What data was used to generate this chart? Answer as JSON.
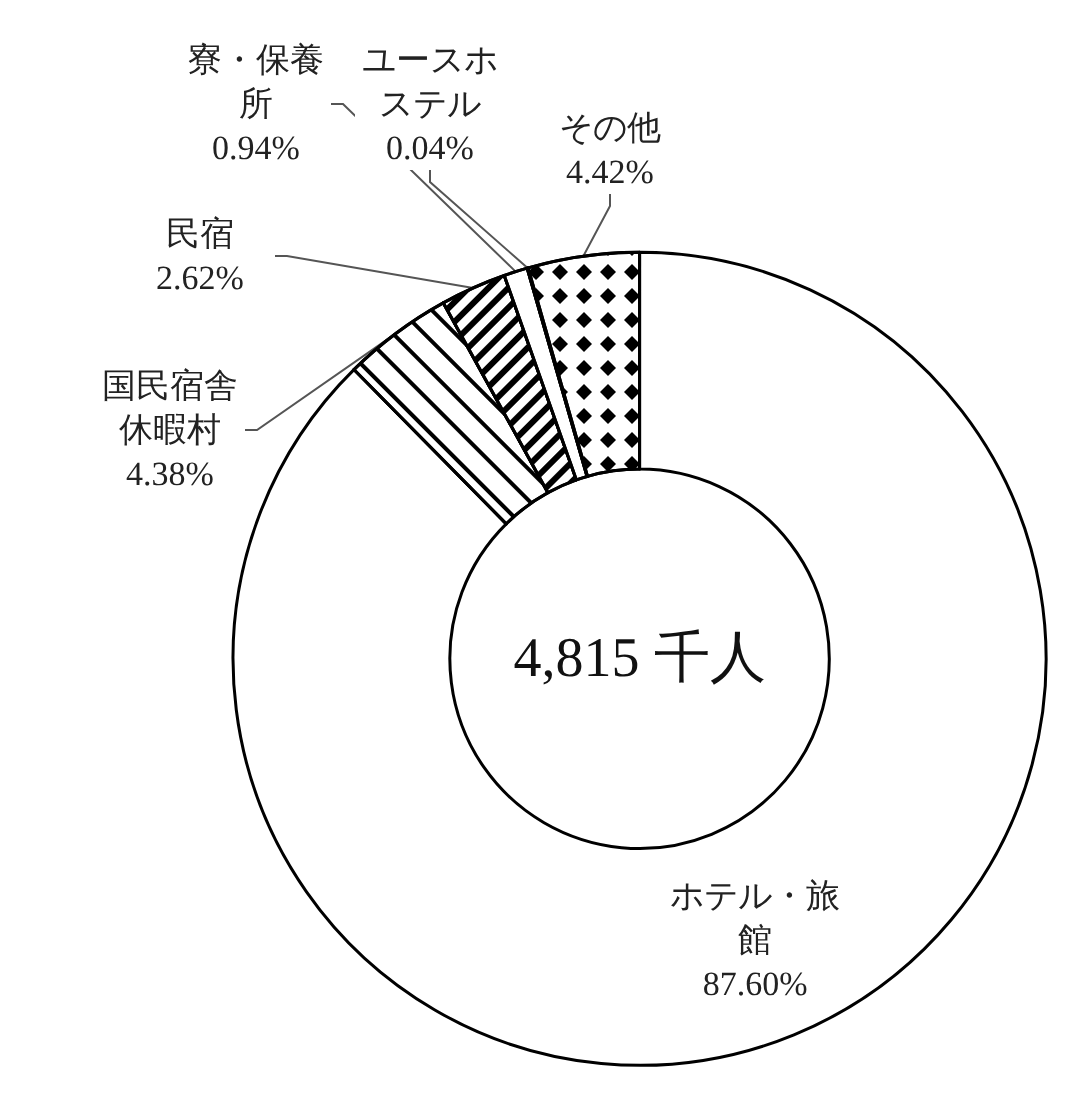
{
  "chart_data": {
    "type": "donut",
    "categories": [
      "ホテル・旅館",
      "国民宿舎休暇村",
      "民宿",
      "寮・保養所",
      "ユースホステル",
      "その他"
    ],
    "values": [
      87.6,
      4.38,
      2.62,
      0.94,
      0.04,
      4.42
    ],
    "value_labels": [
      "87.60%",
      "4.38%",
      "2.62%",
      "0.94%",
      "0.04%",
      "4.42%"
    ],
    "colors": [
      "#ffffff",
      "#ffffff",
      "#ffffff",
      "#ffffff",
      "#ffffff",
      "#ffffff"
    ],
    "annotations": [
      "4,815 千人"
    ],
    "legend": false
  }
}
